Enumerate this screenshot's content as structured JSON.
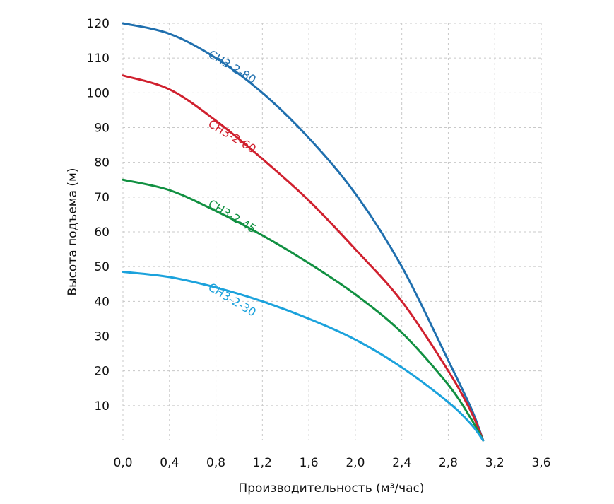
{
  "chart_data": {
    "type": "line",
    "title": "",
    "xlabel": "Производительность (м³/час)",
    "ylabel": "Высота подъема (м)",
    "xlim": [
      0,
      3.6
    ],
    "ylim": [
      0,
      120
    ],
    "x_ticks": [
      0,
      0.4,
      0.8,
      1.2,
      1.6,
      2.0,
      2.4,
      2.8,
      3.2,
      3.6
    ],
    "x_tick_labels": [
      "0,0",
      "0,4",
      "0,8",
      "1,2",
      "1,6",
      "2,0",
      "2,4",
      "2,8",
      "3,2",
      "3,6"
    ],
    "y_ticks": [
      10,
      20,
      30,
      40,
      50,
      60,
      70,
      80,
      90,
      100,
      110,
      120
    ],
    "y_tick_labels": [
      "10",
      "20",
      "30",
      "40",
      "50",
      "60",
      "70",
      "80",
      "90",
      "100",
      "110",
      "120"
    ],
    "grid": true,
    "series": [
      {
        "name": "СН3-2-80",
        "color": "#1f6fae",
        "x": [
          0,
          0.4,
          0.8,
          1.2,
          1.6,
          2.0,
          2.4,
          2.8,
          3.0,
          3.1
        ],
        "values": [
          120,
          117,
          110,
          100,
          87,
          71,
          50,
          23,
          9,
          0
        ]
      },
      {
        "name": "СН3-2-60",
        "color": "#d0202e",
        "x": [
          0,
          0.4,
          0.8,
          1.2,
          1.6,
          2.0,
          2.4,
          2.8,
          3.0,
          3.1
        ],
        "values": [
          105,
          101,
          92,
          81,
          69,
          55,
          40,
          20,
          8,
          0
        ]
      },
      {
        "name": "СН3-2-45",
        "color": "#119041",
        "x": [
          0,
          0.4,
          0.8,
          1.2,
          1.6,
          2.0,
          2.4,
          2.8,
          3.0,
          3.1
        ],
        "values": [
          75,
          72,
          66,
          59,
          51,
          42,
          31,
          16,
          6,
          0
        ]
      },
      {
        "name": "СН3-2-30",
        "color": "#1ba2dc",
        "x": [
          0,
          0.4,
          0.8,
          1.2,
          1.6,
          2.0,
          2.4,
          2.8,
          3.0,
          3.1
        ],
        "values": [
          48.5,
          47,
          44,
          40,
          35,
          29,
          21,
          11,
          4.5,
          0
        ]
      }
    ],
    "annotations": [
      {
        "text": "СН3-2-80",
        "series": "СН3-2-80",
        "x": 1.0,
        "y": 106
      },
      {
        "text": "СН3-2-60",
        "series": "СН3-2-60",
        "x": 1.0,
        "y": 86
      },
      {
        "text": "СН3-2-45",
        "series": "СН3-2-45",
        "x": 1.0,
        "y": 63
      },
      {
        "text": "СН3-2-30",
        "series": "СН3-2-30",
        "x": 1.0,
        "y": 39
      }
    ]
  }
}
